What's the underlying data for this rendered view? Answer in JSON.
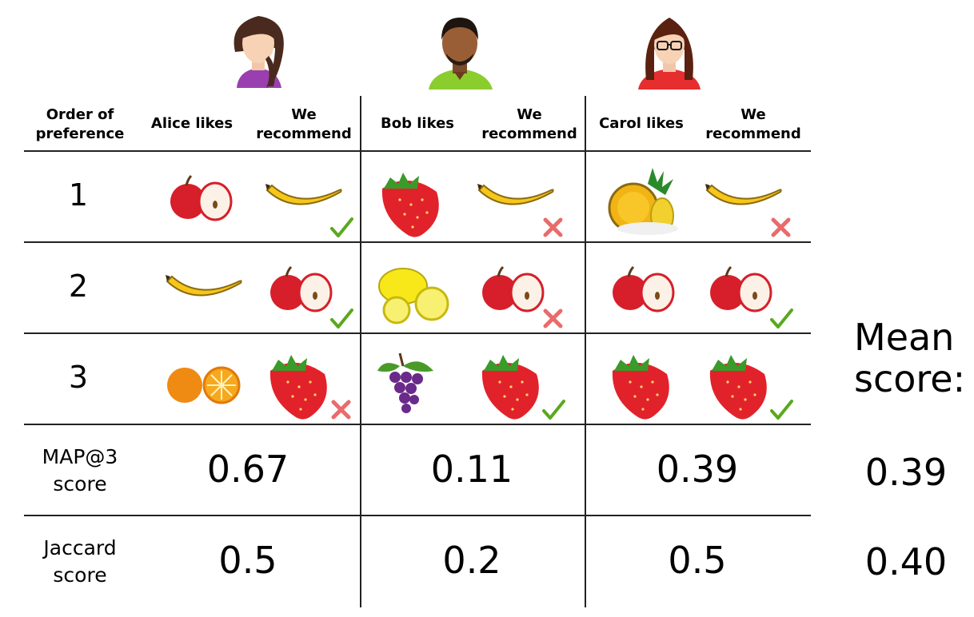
{
  "people": [
    {
      "name": "Alice",
      "likes_header": "Alice likes",
      "recommend_header": "We\nrecommend"
    },
    {
      "name": "Bob",
      "likes_header": "Bob likes",
      "recommend_header": "We\nrecommend"
    },
    {
      "name": "Carol",
      "likes_header": "Carol likes",
      "recommend_header": "We\nrecommend"
    }
  ],
  "order_header": "Order of\npreference",
  "ranks": [
    "1",
    "2",
    "3"
  ],
  "likes": {
    "alice": [
      "apple",
      "banana",
      "orange"
    ],
    "bob": [
      "strawberry",
      "lemon",
      "grapes"
    ],
    "carol": [
      "pineapple",
      "apple",
      "strawberry"
    ]
  },
  "recommendations": {
    "alice": [
      {
        "fruit": "banana",
        "mark": "check"
      },
      {
        "fruit": "apple",
        "mark": "check"
      },
      {
        "fruit": "strawberry",
        "mark": "cross"
      }
    ],
    "bob": [
      {
        "fruit": "banana",
        "mark": "cross"
      },
      {
        "fruit": "apple",
        "mark": "cross"
      },
      {
        "fruit": "strawberry",
        "mark": "check"
      }
    ],
    "carol": [
      {
        "fruit": "banana",
        "mark": "cross"
      },
      {
        "fruit": "apple",
        "mark": "check"
      },
      {
        "fruit": "strawberry",
        "mark": "check"
      }
    ]
  },
  "map_label": "MAP@3\nscore",
  "map_scores": [
    "0.67",
    "0.11",
    "0.39"
  ],
  "jaccard_label": "Jaccard\nscore",
  "jaccard_scores": [
    "0.5",
    "0.2",
    "0.5"
  ],
  "mean_title": "Mean\nscore:",
  "mean_map": "0.39",
  "mean_jaccard": "0.40",
  "colors": {
    "check": "#5aa81e",
    "cross": "#e96b6b",
    "line": "#222222"
  }
}
